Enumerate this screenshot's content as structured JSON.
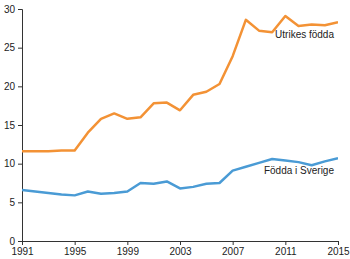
{
  "chart_data": {
    "type": "line",
    "x": [
      1991,
      1992,
      1993,
      1994,
      1995,
      1996,
      1997,
      1998,
      1999,
      2000,
      2001,
      2002,
      2003,
      2004,
      2005,
      2006,
      2007,
      2008,
      2009,
      2010,
      2011,
      2012,
      2013,
      2014,
      2015
    ],
    "series": [
      {
        "name": "Utrikes födda",
        "color": "#f39235",
        "values": [
          11.6,
          11.6,
          11.6,
          11.7,
          11.7,
          14.0,
          15.8,
          16.5,
          15.8,
          16.0,
          17.8,
          17.9,
          16.9,
          18.9,
          19.3,
          20.3,
          23.9,
          28.6,
          27.2,
          27.0,
          29.1,
          27.8,
          28.0,
          27.9,
          28.3
        ]
      },
      {
        "name": "Födda i Sverige",
        "color": "#4a9bd5",
        "values": [
          6.6,
          6.4,
          6.2,
          6.0,
          5.9,
          6.4,
          6.1,
          6.2,
          6.4,
          7.5,
          7.4,
          7.7,
          6.8,
          7.0,
          7.4,
          7.5,
          9.1,
          9.6,
          10.1,
          10.6,
          10.4,
          10.2,
          9.8,
          10.3,
          10.7
        ]
      }
    ],
    "xlim": [
      1991,
      2015
    ],
    "xticks": [
      1991,
      1995,
      1999,
      2003,
      2007,
      2011,
      2015
    ],
    "ylim": [
      0,
      30
    ],
    "yticks": [
      0,
      5,
      10,
      15,
      20,
      25,
      30
    ],
    "grid": false
  }
}
